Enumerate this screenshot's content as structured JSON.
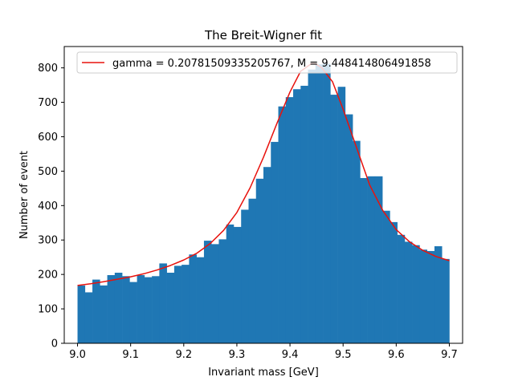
{
  "chart_data": {
    "type": "bar",
    "title": "The Breit-Wigner fit",
    "xlabel": "Invariant mass [GeV]",
    "ylabel": "Number of event",
    "xlim": [
      8.975,
      9.725
    ],
    "ylim": [
      0,
      862
    ],
    "x_ticks": [
      "9.0",
      "9.1",
      "9.2",
      "9.3",
      "9.4",
      "9.5",
      "9.6",
      "9.7"
    ],
    "x_tick_values": [
      9.0,
      9.1,
      9.2,
      9.3,
      9.4,
      9.5,
      9.6,
      9.7
    ],
    "y_ticks": [
      "0",
      "100",
      "200",
      "300",
      "400",
      "500",
      "600",
      "700",
      "800"
    ],
    "y_tick_values": [
      0,
      100,
      200,
      300,
      400,
      500,
      600,
      700,
      800
    ],
    "grid": false,
    "legend_position": "top-right",
    "bin_start": 9.0,
    "bin_width": 0.014,
    "histogram_values": [
      168,
      148,
      185,
      168,
      198,
      205,
      195,
      178,
      198,
      192,
      195,
      232,
      205,
      225,
      228,
      258,
      250,
      298,
      288,
      302,
      345,
      338,
      388,
      420,
      478,
      512,
      585,
      688,
      715,
      738,
      748,
      795,
      810,
      812,
      722,
      745,
      665,
      588,
      480,
      485,
      485,
      385,
      352,
      315,
      295,
      285,
      272,
      268,
      282,
      245
    ],
    "histogram_color": "#1f77b4",
    "series": [
      {
        "name": "gamma = 0.20781509335205767, M = 9.448414806491858",
        "type": "line",
        "color": "#e8120d",
        "x": [
          9.0,
          9.025,
          9.05,
          9.075,
          9.1,
          9.125,
          9.15,
          9.175,
          9.2,
          9.225,
          9.25,
          9.275,
          9.3,
          9.325,
          9.35,
          9.375,
          9.4,
          9.42,
          9.44,
          9.448,
          9.46,
          9.48,
          9.5,
          9.525,
          9.55,
          9.575,
          9.6,
          9.625,
          9.65,
          9.675,
          9.7
        ],
        "y": [
          168,
          173,
          179,
          186,
          193,
          202,
          213,
          226,
          242,
          262,
          290,
          328,
          380,
          452,
          540,
          637,
          730,
          790,
          812,
          812,
          800,
          760,
          680,
          570,
          460,
          385,
          330,
          295,
          270,
          252,
          240
        ]
      }
    ]
  }
}
